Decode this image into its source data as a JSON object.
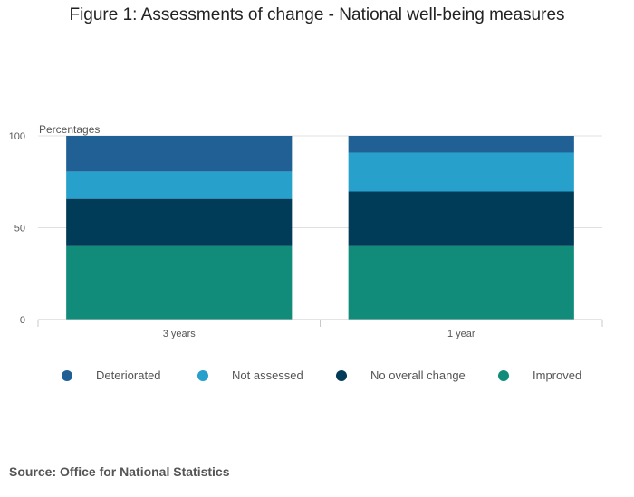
{
  "chart_data": {
    "type": "bar",
    "stacked": true,
    "title": "Figure 1: Assessments of change - National well-being measures",
    "ylabel": "Percentages",
    "xlabel": "",
    "ylim": [
      0,
      100
    ],
    "yticks": [
      0,
      50,
      100
    ],
    "categories": [
      "3 years",
      "1 year"
    ],
    "series": [
      {
        "name": "Improved",
        "color": "#118c7b",
        "values": [
          40,
          40
        ]
      },
      {
        "name": "No overall change",
        "color": "#003c57",
        "values": [
          25.7,
          29.7
        ]
      },
      {
        "name": "Not assessed",
        "color": "#27a0cc",
        "values": [
          14.9,
          21.2
        ]
      },
      {
        "name": "Deteriorated",
        "color": "#206095",
        "values": [
          19.4,
          9.1
        ]
      }
    ],
    "legend": {
      "position": "bottom",
      "order": [
        "Deteriorated",
        "Not assessed",
        "No overall change",
        "Improved"
      ]
    },
    "grid": true
  },
  "source": "Source: Office for National Statistics"
}
